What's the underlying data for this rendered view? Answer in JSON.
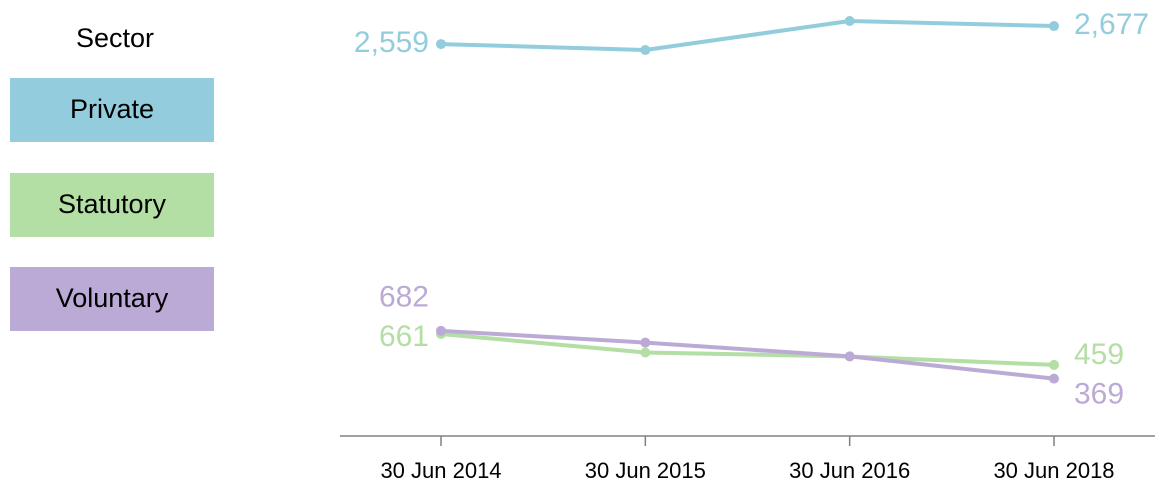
{
  "chart_data": {
    "type": "line",
    "legend_title": "Sector",
    "categories": [
      "30 Jun 2014",
      "30 Jun 2015",
      "30 Jun 2016",
      "30 Jun 2018"
    ],
    "series": [
      {
        "name": "Private",
        "color": "#93cddd",
        "values": [
          2559,
          2520,
          2710,
          2677
        ],
        "value_labels": [
          "2,559",
          null,
          null,
          "2,677"
        ]
      },
      {
        "name": "Statutory",
        "color": "#b3dea4",
        "values": [
          661,
          540,
          514,
          459
        ]
      },
      {
        "name": "Voluntary",
        "color": "#bcaad6",
        "values": [
          682,
          605,
          515,
          369
        ]
      }
    ]
  }
}
